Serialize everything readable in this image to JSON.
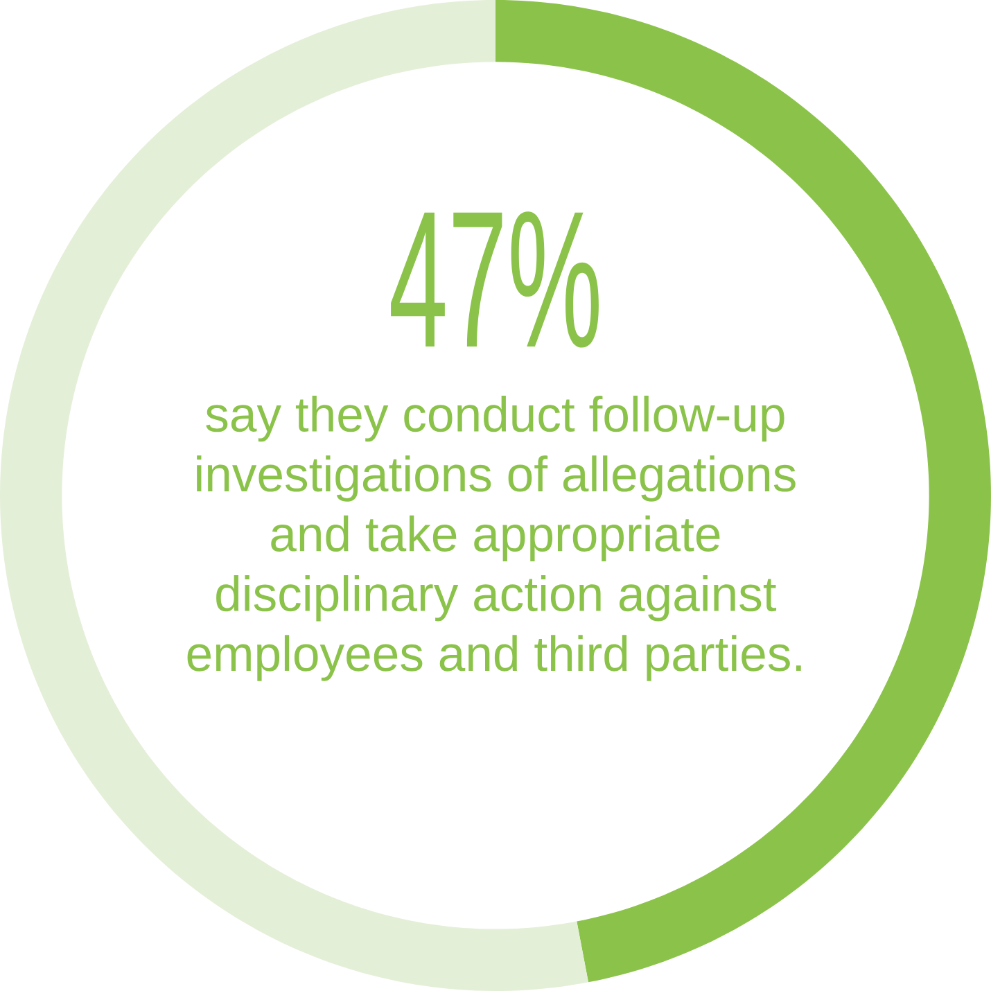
{
  "chart_data": {
    "type": "donut",
    "categories": [
      null,
      null
    ],
    "values": [
      47,
      53
    ],
    "colors": [
      "#8bc34a",
      "#e4efd8"
    ],
    "value_labels": [
      "47%",
      null
    ],
    "annotations": [
      "say they conduct follow-up investigations of allegations and take appropriate disciplinary action against employees and third parties."
    ]
  }
}
